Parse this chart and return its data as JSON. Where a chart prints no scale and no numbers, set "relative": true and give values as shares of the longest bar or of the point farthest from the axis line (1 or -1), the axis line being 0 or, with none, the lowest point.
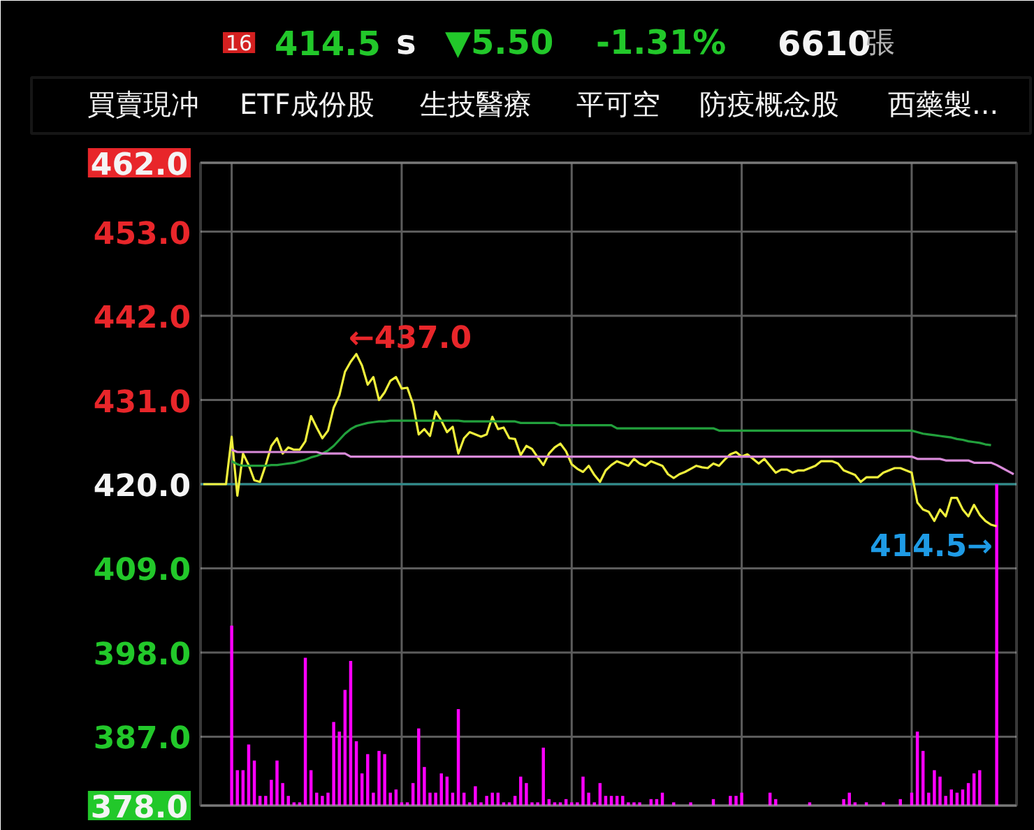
{
  "chart_data": [
    {
      "type": "line",
      "categories": [
        null,
        null,
        null,
        null,
        null,
        null,
        null,
        null,
        null,
        null,
        null,
        null,
        null,
        null,
        null,
        null,
        null,
        null,
        null,
        null,
        null,
        null,
        null,
        null,
        null,
        null,
        null,
        null,
        null,
        null,
        null,
        null,
        null,
        null,
        null,
        null,
        null,
        null,
        null,
        null,
        null,
        null,
        null,
        null,
        null,
        null,
        null,
        null,
        null,
        null,
        null,
        null,
        null,
        null,
        null,
        null,
        null,
        null,
        null,
        null,
        null,
        null,
        null,
        null,
        null,
        null,
        null,
        null,
        null,
        null,
        null,
        null,
        null,
        null,
        null,
        null,
        null,
        null,
        null,
        null,
        null,
        null,
        null,
        null,
        null,
        null,
        null,
        null,
        null,
        null,
        null,
        null,
        null,
        null,
        null,
        null,
        null,
        null,
        null,
        null,
        null,
        null,
        null,
        null,
        null,
        null,
        null,
        null,
        null,
        null,
        null,
        null,
        null,
        null,
        null,
        null,
        null,
        null,
        null,
        null,
        null,
        null,
        null,
        null,
        null,
        null,
        null,
        null,
        null,
        null,
        null,
        null,
        null,
        null,
        null,
        null,
        null,
        null,
        null,
        null,
        null,
        null,
        null,
        null
      ],
      "series": [
        {
          "color": "#f0f03c",
          "values": [
            420,
            420,
            420,
            420,
            420,
            426.2,
            418.5,
            424,
            422.5,
            420.5,
            420.3,
            422.5,
            425,
            426,
            424,
            424.8,
            424.5,
            424.5,
            425.6,
            428.9,
            427.4,
            426,
            427,
            430,
            431.6,
            434.7,
            436,
            437,
            435.5,
            433,
            434,
            431,
            432,
            433.5,
            434,
            432.5,
            432.6,
            430.5,
            426.5,
            427.2,
            426.3,
            429.5,
            428.3,
            426.8,
            427.5,
            424,
            426,
            426.8,
            426.5,
            426.2,
            426.5,
            428.8,
            427.2,
            427.4,
            426,
            425.9,
            423.8,
            425,
            424.6,
            423.5,
            422.5,
            424,
            424.8,
            425.3,
            424.3,
            422.6,
            422,
            421.6,
            422.4,
            421.2,
            420.3,
            421.8,
            422.5,
            423,
            422.7,
            422.4,
            423.3,
            422.7,
            422.4,
            423,
            422.7,
            422.4,
            421.3,
            420.8,
            421.3,
            421.6,
            422,
            422.4,
            422.2,
            422.1,
            422.7,
            422.4,
            423.2,
            423.9,
            424.2,
            423.6,
            423.9,
            423.3,
            422.7,
            423.3,
            422.4,
            421.5,
            421.9,
            421.9,
            421.5,
            421.8,
            421.8,
            422.1,
            422.4,
            423,
            423,
            423,
            422.7,
            421.8,
            421.5,
            421.2,
            420.3,
            420.9,
            420.9,
            420.9,
            421.5,
            421.8,
            422.1,
            422.1,
            421.8,
            421.5,
            417.6,
            416.7,
            416.4,
            415.2,
            416.7,
            415.8,
            418.2,
            418.2,
            416.7,
            415.8,
            417.3,
            416,
            415.2,
            414.7,
            414.5,
            null,
            null,
            null
          ]
        },
        {
          "color": "#22a03c",
          "values": [
            null,
            null,
            null,
            null,
            null,
            423,
            422.6,
            422.4,
            422.4,
            422.4,
            422.4,
            422.4,
            422.5,
            422.5,
            422.6,
            422.7,
            422.8,
            423,
            423.2,
            423.5,
            423.7,
            424,
            424.4,
            425,
            425.8,
            426.6,
            427.2,
            427.6,
            427.8,
            428,
            428.1,
            428.2,
            428.2,
            428.3,
            428.3,
            428.3,
            428.3,
            428.3,
            428.3,
            428.3,
            428.3,
            428.3,
            428.3,
            428.3,
            428.3,
            428.3,
            428.2,
            428.2,
            428.2,
            428.2,
            428.2,
            428.2,
            428.2,
            428.2,
            428.2,
            428.2,
            428,
            428,
            428,
            428,
            428,
            428,
            428,
            427.7,
            427.7,
            427.7,
            427.7,
            427.7,
            427.7,
            427.7,
            427.7,
            427.7,
            427.7,
            427.3,
            427.3,
            427.3,
            427.3,
            427.3,
            427.3,
            427.3,
            427.3,
            427.3,
            427.3,
            427.3,
            427.3,
            427.3,
            427.3,
            427.3,
            427.3,
            427.3,
            427.3,
            427,
            427,
            427,
            427,
            427,
            427,
            427,
            427,
            427,
            427,
            427,
            427,
            427,
            427,
            427,
            427,
            427,
            427,
            427,
            427,
            427,
            427,
            427,
            427,
            427,
            427,
            427,
            427,
            427,
            427,
            427,
            427,
            427,
            427,
            427,
            426.8,
            426.6,
            426.5,
            426.4,
            426.3,
            426.2,
            426.1,
            425.9,
            425.8,
            425.6,
            425.5,
            425.4,
            425.2,
            425.1,
            null,
            null,
            null,
            null
          ]
        },
        {
          "color": "#d98ad9",
          "values": [
            null,
            null,
            null,
            null,
            null,
            424.5,
            424.2,
            424.2,
            424.2,
            424.2,
            424.2,
            424.2,
            424.2,
            424.2,
            424.2,
            424.2,
            424.2,
            424.2,
            424.2,
            424.2,
            424.2,
            424,
            424,
            424,
            424,
            424,
            423.6,
            423.6,
            423.6,
            423.6,
            423.6,
            423.6,
            423.6,
            423.6,
            423.6,
            423.6,
            423.6,
            423.6,
            423.6,
            423.6,
            423.6,
            423.6,
            423.6,
            423.6,
            423.6,
            423.6,
            423.6,
            423.6,
            423.6,
            423.6,
            423.6,
            423.6,
            423.6,
            423.6,
            423.6,
            423.6,
            423.6,
            423.6,
            423.6,
            423.6,
            423.6,
            423.6,
            423.6,
            423.6,
            423.6,
            423.6,
            423.6,
            423.6,
            423.6,
            423.6,
            423.6,
            423.6,
            423.6,
            423.6,
            423.6,
            423.6,
            423.6,
            423.6,
            423.6,
            423.6,
            423.6,
            423.6,
            423.6,
            423.6,
            423.6,
            423.6,
            423.6,
            423.6,
            423.6,
            423.6,
            423.6,
            423.6,
            423.6,
            423.6,
            423.6,
            423.6,
            423.6,
            423.6,
            423.6,
            423.6,
            423.6,
            423.6,
            423.6,
            423.6,
            423.6,
            423.6,
            423.6,
            423.6,
            423.6,
            423.6,
            423.6,
            423.6,
            423.6,
            423.6,
            423.6,
            423.6,
            423.6,
            423.6,
            423.6,
            423.6,
            423.6,
            423.6,
            423.6,
            423.6,
            423.6,
            423.6,
            423.3,
            423.3,
            423.3,
            423.3,
            423.3,
            423.1,
            423.1,
            423.1,
            423.1,
            423.1,
            422.8,
            422.8,
            422.8,
            422.8,
            422.5,
            422.1,
            421.7,
            421.3
          ]
        }
      ],
      "ylim": [
        378,
        462
      ],
      "yticks": [
        {
          "value": 378,
          "label": "378.0"
        },
        {
          "value": 387,
          "label": "387.0"
        },
        {
          "value": 398,
          "label": "398.0"
        },
        {
          "value": 409,
          "label": "409.0"
        },
        {
          "value": 420,
          "label": "420.0"
        },
        {
          "value": 431,
          "label": "431.0"
        },
        {
          "value": 442,
          "label": "442.0"
        },
        {
          "value": 453,
          "label": "453.0"
        },
        {
          "value": 462,
          "label": "462.0"
        }
      ],
      "grid": true,
      "tick_labels": "y",
      "ref_lines": [
        {
          "axis": "y",
          "value": 420,
          "color": "#2e8c8c"
        }
      ],
      "annotations": [
        "16",
        "414.5",
        "s",
        "▼5.50",
        "-1.31%",
        "6610",
        "張",
        "買賣現冲",
        "ETF成份股",
        "生技醫療",
        "平可空",
        "防疫概念股",
        "西藥製...",
        "←437.0",
        {
          "text": "414.5→",
          "y": 414.5
        }
      ]
    },
    {
      "type": "bar",
      "relative": true,
      "color": "#ff00ff",
      "categories": [
        null,
        null,
        null,
        null,
        null,
        null,
        null,
        null,
        null,
        null,
        null,
        null,
        null,
        null,
        null,
        null,
        null,
        null,
        null,
        null,
        null,
        null,
        null,
        null,
        null,
        null,
        null,
        null,
        null,
        null,
        null,
        null,
        null,
        null,
        null,
        null,
        null,
        null,
        null,
        null,
        null,
        null,
        null,
        null,
        null,
        null,
        null,
        null,
        null,
        null,
        null,
        null,
        null,
        null,
        null,
        null,
        null,
        null,
        null,
        null,
        null,
        null,
        null,
        null,
        null,
        null,
        null,
        null,
        null,
        null,
        null,
        null,
        null,
        null,
        null,
        null,
        null,
        null,
        null,
        null,
        null,
        null,
        null,
        null,
        null,
        null,
        null,
        null,
        null,
        null,
        null,
        null,
        null,
        null,
        null,
        null,
        null,
        null,
        null,
        null,
        null,
        null,
        null,
        null,
        null,
        null,
        null,
        null,
        null,
        null,
        null,
        null,
        null,
        null,
        null,
        null,
        null,
        null,
        null,
        null,
        null,
        null,
        null,
        null,
        null,
        null,
        null,
        null,
        null,
        null,
        null,
        null,
        null,
        null,
        null,
        null,
        null,
        null,
        null,
        null,
        null,
        null,
        null,
        null
      ],
      "values": [
        null,
        null,
        null,
        null,
        null,
        0.56,
        0.11,
        0.11,
        0.19,
        0.14,
        0.03,
        0.03,
        0.08,
        0.14,
        0.07,
        0.03,
        0.01,
        0.01,
        0.46,
        0.11,
        0.04,
        0.03,
        0.04,
        0.26,
        0.23,
        0.36,
        0.45,
        0.2,
        0.1,
        0.16,
        0.04,
        0.17,
        0.16,
        0.04,
        0.05,
        0.01,
        0.01,
        0.07,
        0.24,
        0.12,
        0.04,
        0.04,
        0.1,
        0.09,
        0.04,
        0.3,
        0.04,
        0.01,
        0.06,
        0.01,
        0.03,
        0.04,
        0.04,
        0.01,
        0.01,
        0.03,
        0.09,
        0.07,
        0.01,
        0.01,
        0.18,
        0.02,
        0.01,
        0.01,
        0.02,
        0.01,
        0.01,
        0.09,
        0.04,
        0.01,
        0.07,
        0.03,
        0.03,
        0.03,
        0.03,
        0.01,
        0.01,
        0.01,
        null,
        0.02,
        0.02,
        0.04,
        null,
        0.01,
        null,
        null,
        0.01,
        null,
        null,
        null,
        0.02,
        null,
        null,
        0.03,
        0.03,
        0.04,
        null,
        null,
        null,
        null,
        0.04,
        0.02,
        null,
        null,
        null,
        null,
        null,
        0.01,
        null,
        null,
        null,
        null,
        null,
        0.02,
        0.04,
        0.01,
        null,
        0.01,
        null,
        null,
        0.01,
        null,
        null,
        0.02,
        null,
        0.04,
        0.23,
        0.17,
        0.04,
        0.11,
        0.09,
        0.03,
        0.05,
        0.04,
        0.05,
        0.07,
        0.1,
        0.11,
        null,
        null,
        1,
        null,
        null,
        null
      ]
    }
  ]
}
